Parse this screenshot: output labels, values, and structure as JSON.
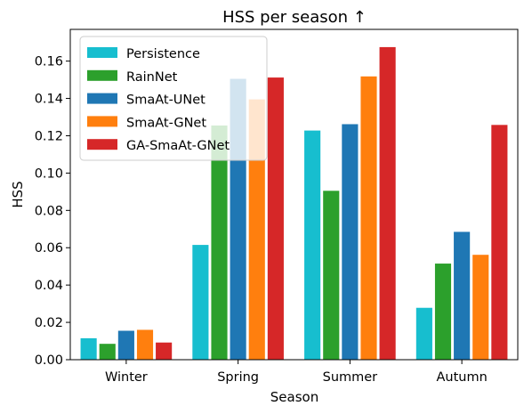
{
  "chart_data": {
    "type": "bar",
    "title": "HSS per season ↑",
    "xlabel": "Season",
    "ylabel": "HSS",
    "ylim": [
      0,
      0.177
    ],
    "yticks": [
      "0.00",
      "0.02",
      "0.04",
      "0.06",
      "0.08",
      "0.10",
      "0.12",
      "0.14",
      "0.16"
    ],
    "categories": [
      "Winter",
      "Spring",
      "Summer",
      "Autumn"
    ],
    "grid": false,
    "legend_position": "top-left",
    "series": [
      {
        "name": "Persistence",
        "color": "#17becf",
        "values": [
          0.0115,
          0.0615,
          0.1228,
          0.0278
        ]
      },
      {
        "name": "RainNet",
        "color": "#2ca02c",
        "values": [
          0.0085,
          0.1255,
          0.0905,
          0.0515
        ]
      },
      {
        "name": "SmaAt-UNet",
        "color": "#1f77b4",
        "values": [
          0.0155,
          0.1505,
          0.1262,
          0.0685
        ]
      },
      {
        "name": "SmaAt-GNet",
        "color": "#ff7f0e",
        "values": [
          0.016,
          0.1395,
          0.1518,
          0.0562
        ]
      },
      {
        "name": "GA-SmaAt-GNet",
        "color": "#d62728",
        "values": [
          0.0092,
          0.1512,
          0.1675,
          0.1258
        ]
      }
    ]
  }
}
